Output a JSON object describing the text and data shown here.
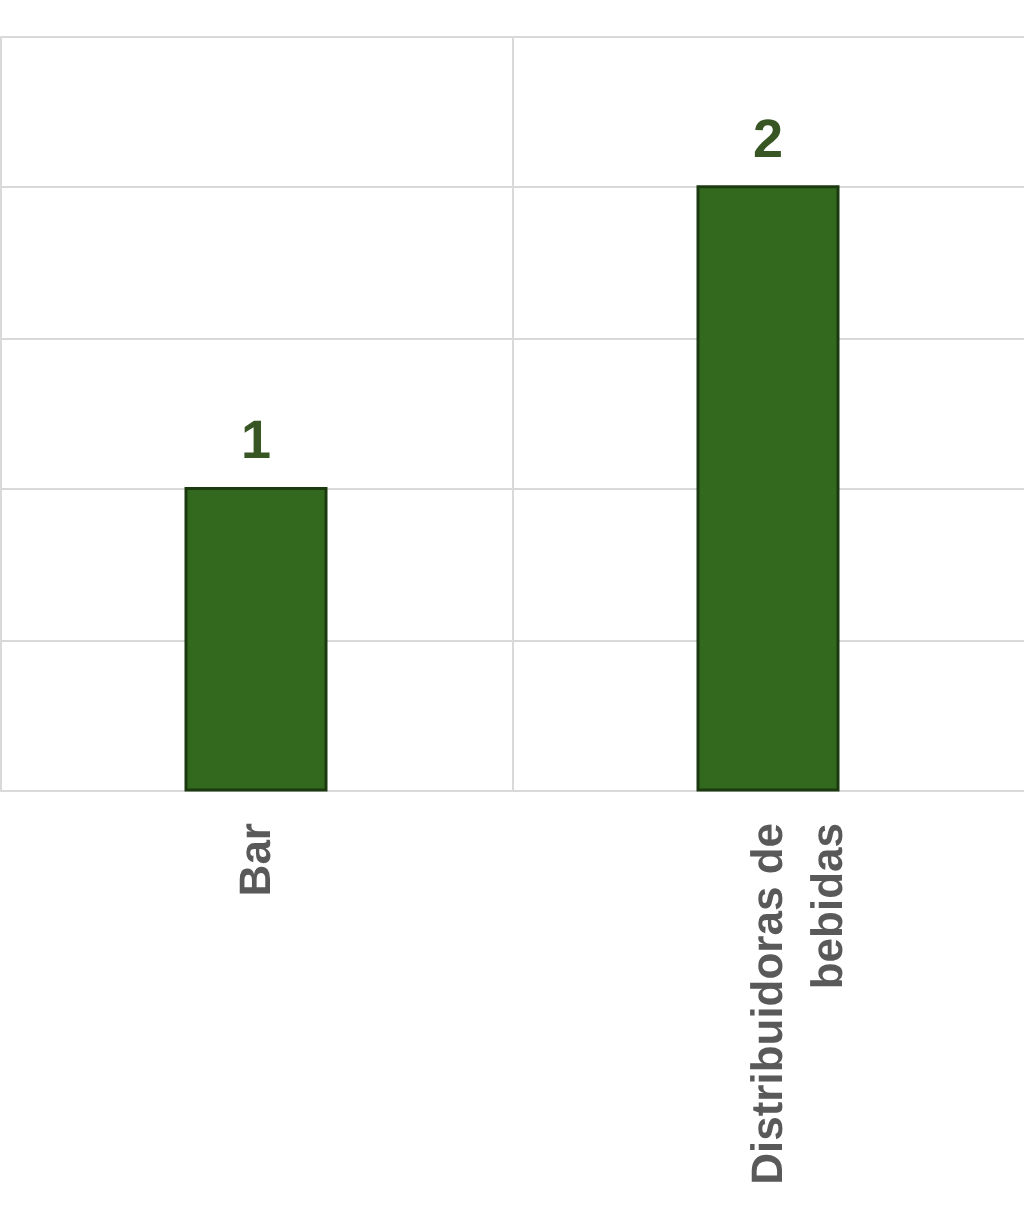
{
  "chart_data": {
    "type": "bar",
    "categories": [
      "Bar",
      "Distribuidoras de bebidas"
    ],
    "values": [
      1,
      2
    ],
    "color": "#33691e",
    "ylim": [
      0,
      2.5
    ],
    "yticks": [
      0,
      0.5,
      1,
      1.5,
      2,
      2.5
    ],
    "tick_labels": "x",
    "grid": true,
    "data_labels": true
  }
}
